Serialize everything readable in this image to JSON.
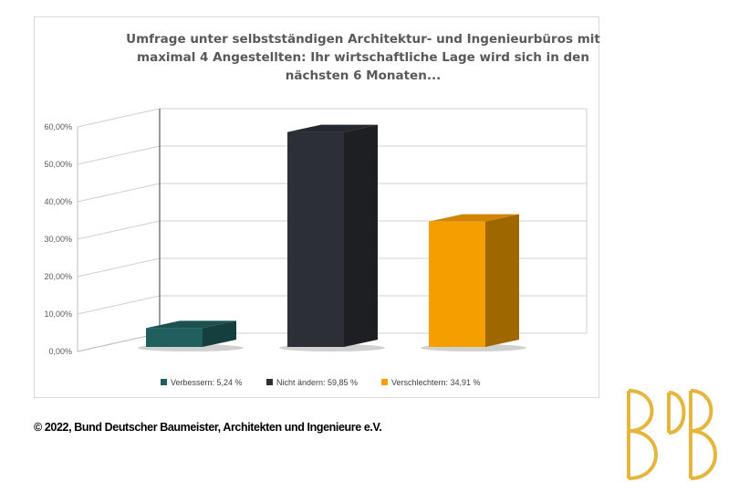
{
  "chart_data": {
    "type": "bar",
    "title_lines": [
      "Umfrage unter selbstständigen Architektur- und Ingenieurbüros mit",
      "maximal 4 Angestellten: Ihr wirtschaftliche Lage wird sich in den",
      "nächsten 6 Monaten..."
    ],
    "categories": [
      "Verbessern: 5,24 %",
      "Nicht ändern: 59,85 %",
      "Verschlechtern: 34,91 %"
    ],
    "values": [
      5.24,
      59.85,
      34.91
    ],
    "colors": [
      "#215f5f",
      "#2c2f36",
      "#f59e00"
    ],
    "ylim": [
      0,
      60
    ],
    "y_ticks": [
      "0,00%",
      "10,00%",
      "20,00%",
      "30,00%",
      "40,00%",
      "50,00%",
      "60,00%"
    ],
    "grid": true,
    "legend_position": "bottom"
  },
  "footer": {
    "copyright": "© 2022, Bund Deutscher Baumeister, Architekten und Ingenieure e.V."
  },
  "logo": {
    "text": "BDB",
    "color": "#e6b53d"
  }
}
